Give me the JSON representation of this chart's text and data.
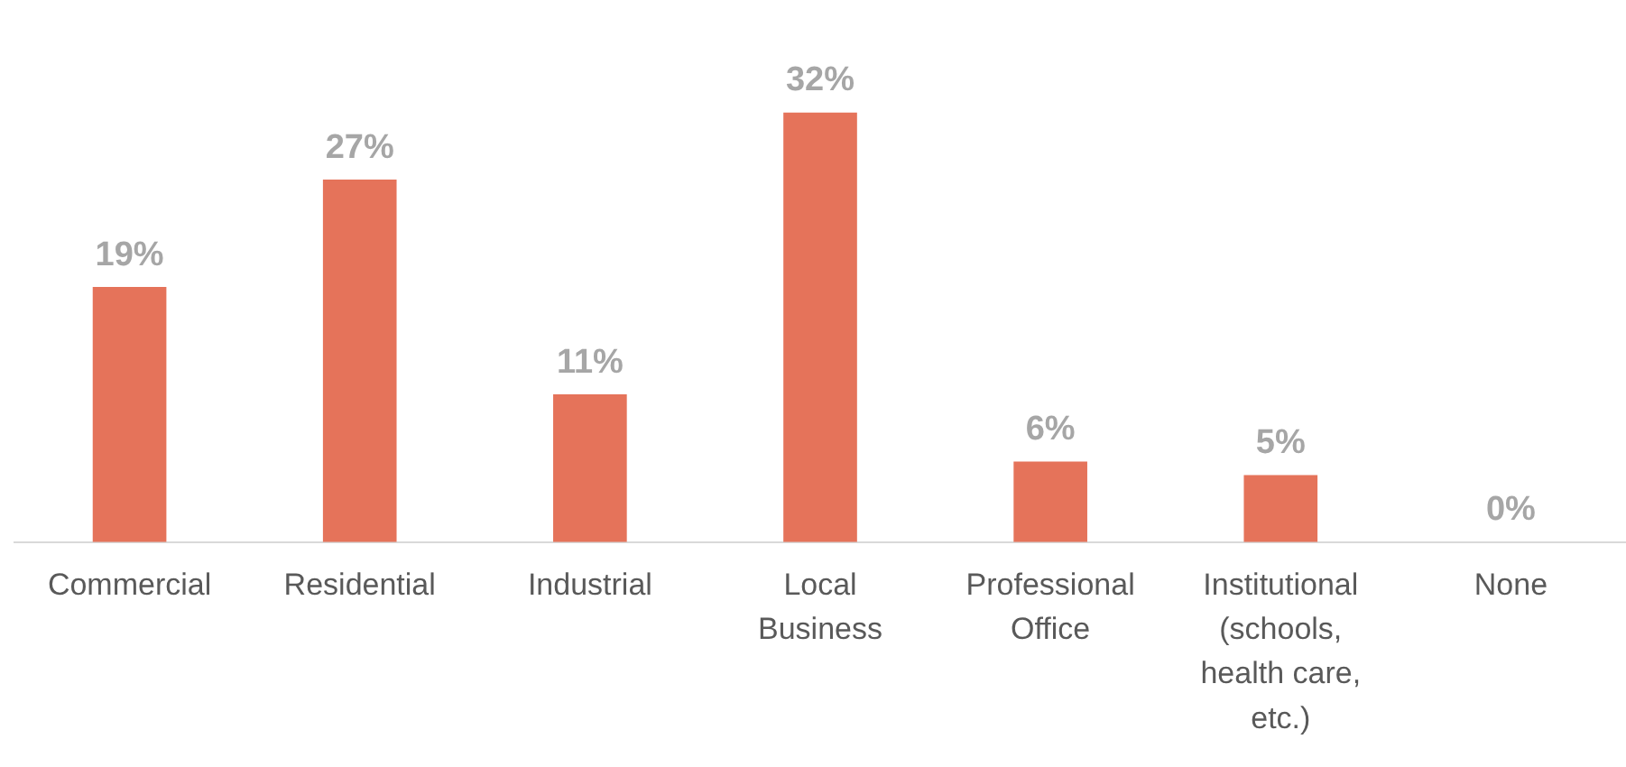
{
  "chart_data": {
    "type": "bar",
    "categories": [
      "Commercial",
      "Residential",
      "Industrial",
      "Local Business",
      "Professional Office",
      "Institutional (schools, health care, etc.)",
      "None"
    ],
    "values": [
      19,
      27,
      11,
      32,
      6,
      5,
      0
    ],
    "value_labels": [
      "19%",
      "27%",
      "11%",
      "32%",
      "6%",
      "5%",
      "0%"
    ],
    "color": "#e5735a",
    "tick_labels": "x",
    "grid": false,
    "legend": false
  }
}
